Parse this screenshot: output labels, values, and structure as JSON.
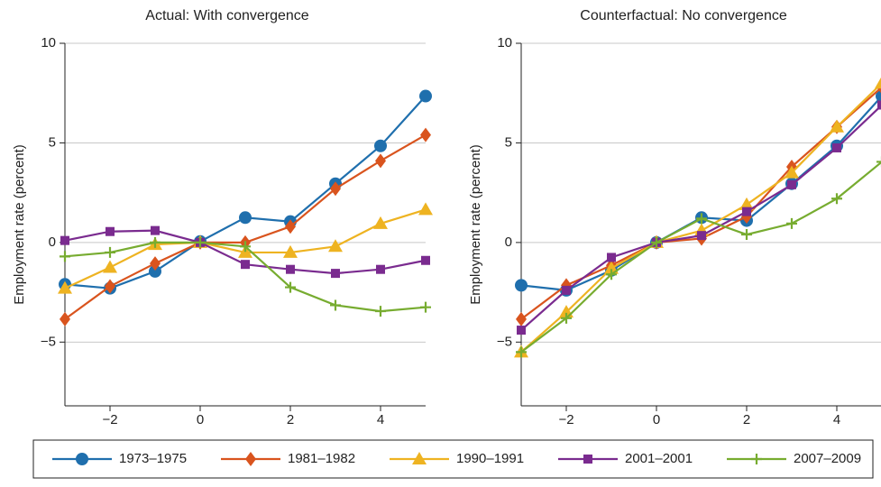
{
  "chart_data": [
    {
      "type": "line",
      "title": "Actual: With convergence",
      "ylabel": "Employment rate (percent)",
      "x": [
        -3,
        -2,
        -1,
        0,
        1,
        2,
        3,
        4,
        5
      ],
      "xlim": [
        -3,
        5
      ],
      "xticks": [
        {
          "value": -2,
          "label": "−2"
        },
        0,
        2,
        4
      ],
      "ylim": [
        -8.2,
        10
      ],
      "yticks": [
        {
          "value": -5,
          "label": "−5"
        },
        0,
        5,
        10
      ],
      "grid": true,
      "series": [
        {
          "name": "1973–1975",
          "color": "#1f6fad",
          "marker": "circle",
          "values": [
            -2.1,
            -2.3,
            -1.45,
            0.05,
            1.25,
            1.05,
            2.95,
            4.85,
            7.35
          ]
        },
        {
          "name": "1981–1982",
          "color": "#d9541e",
          "marker": "diamond",
          "values": [
            -3.85,
            -2.2,
            -1.05,
            0.0,
            0.0,
            0.8,
            2.7,
            4.1,
            5.4
          ]
        },
        {
          "name": "1990–1991",
          "color": "#eeb321",
          "marker": "triangle",
          "values": [
            -2.3,
            -1.25,
            -0.1,
            0.0,
            -0.5,
            -0.5,
            -0.2,
            0.95,
            1.65
          ]
        },
        {
          "name": "2001–2001",
          "color": "#7a2b8f",
          "marker": "square",
          "values": [
            0.1,
            0.55,
            0.6,
            0.0,
            -1.1,
            -1.35,
            -1.55,
            -1.35,
            -0.9
          ]
        },
        {
          "name": "2007–2009",
          "color": "#77ac30",
          "marker": "plus",
          "values": [
            -0.7,
            -0.5,
            0.0,
            0.0,
            -0.2,
            -2.25,
            -3.15,
            -3.45,
            -3.25
          ]
        }
      ]
    },
    {
      "type": "line",
      "title": "Counterfactual: No convergence",
      "ylabel": "Employment rate (percent)",
      "x": [
        -3,
        -2,
        -1,
        0,
        1,
        2,
        3,
        4,
        5
      ],
      "xlim": [
        -3,
        5
      ],
      "xticks": [
        {
          "value": -2,
          "label": "−2"
        },
        0,
        2,
        4
      ],
      "ylim": [
        -8.2,
        10
      ],
      "yticks": [
        {
          "value": -5,
          "label": "−5"
        },
        0,
        5,
        10
      ],
      "grid": true,
      "series": [
        {
          "color": "#1f6fad",
          "marker": "circle",
          "values": [
            -2.15,
            -2.4,
            -1.4,
            0.0,
            1.25,
            1.1,
            2.95,
            4.85,
            7.35
          ]
        },
        {
          "color": "#d9541e",
          "marker": "diamond",
          "values": [
            -3.85,
            -2.15,
            -1.15,
            0.0,
            0.2,
            1.3,
            3.8,
            5.8,
            7.8
          ]
        },
        {
          "color": "#eeb321",
          "marker": "triangle",
          "values": [
            -5.5,
            -3.5,
            -1.3,
            0.0,
            0.6,
            1.9,
            3.5,
            5.8,
            8.0
          ]
        },
        {
          "color": "#7a2b8f",
          "marker": "square",
          "values": [
            -4.4,
            -2.4,
            -0.75,
            0.0,
            0.35,
            1.55,
            2.9,
            4.75,
            6.9
          ]
        },
        {
          "color": "#77ac30",
          "marker": "plus",
          "values": [
            -5.5,
            -3.8,
            -1.6,
            0.0,
            1.2,
            0.4,
            0.95,
            2.2,
            4.05
          ]
        }
      ]
    }
  ]
}
